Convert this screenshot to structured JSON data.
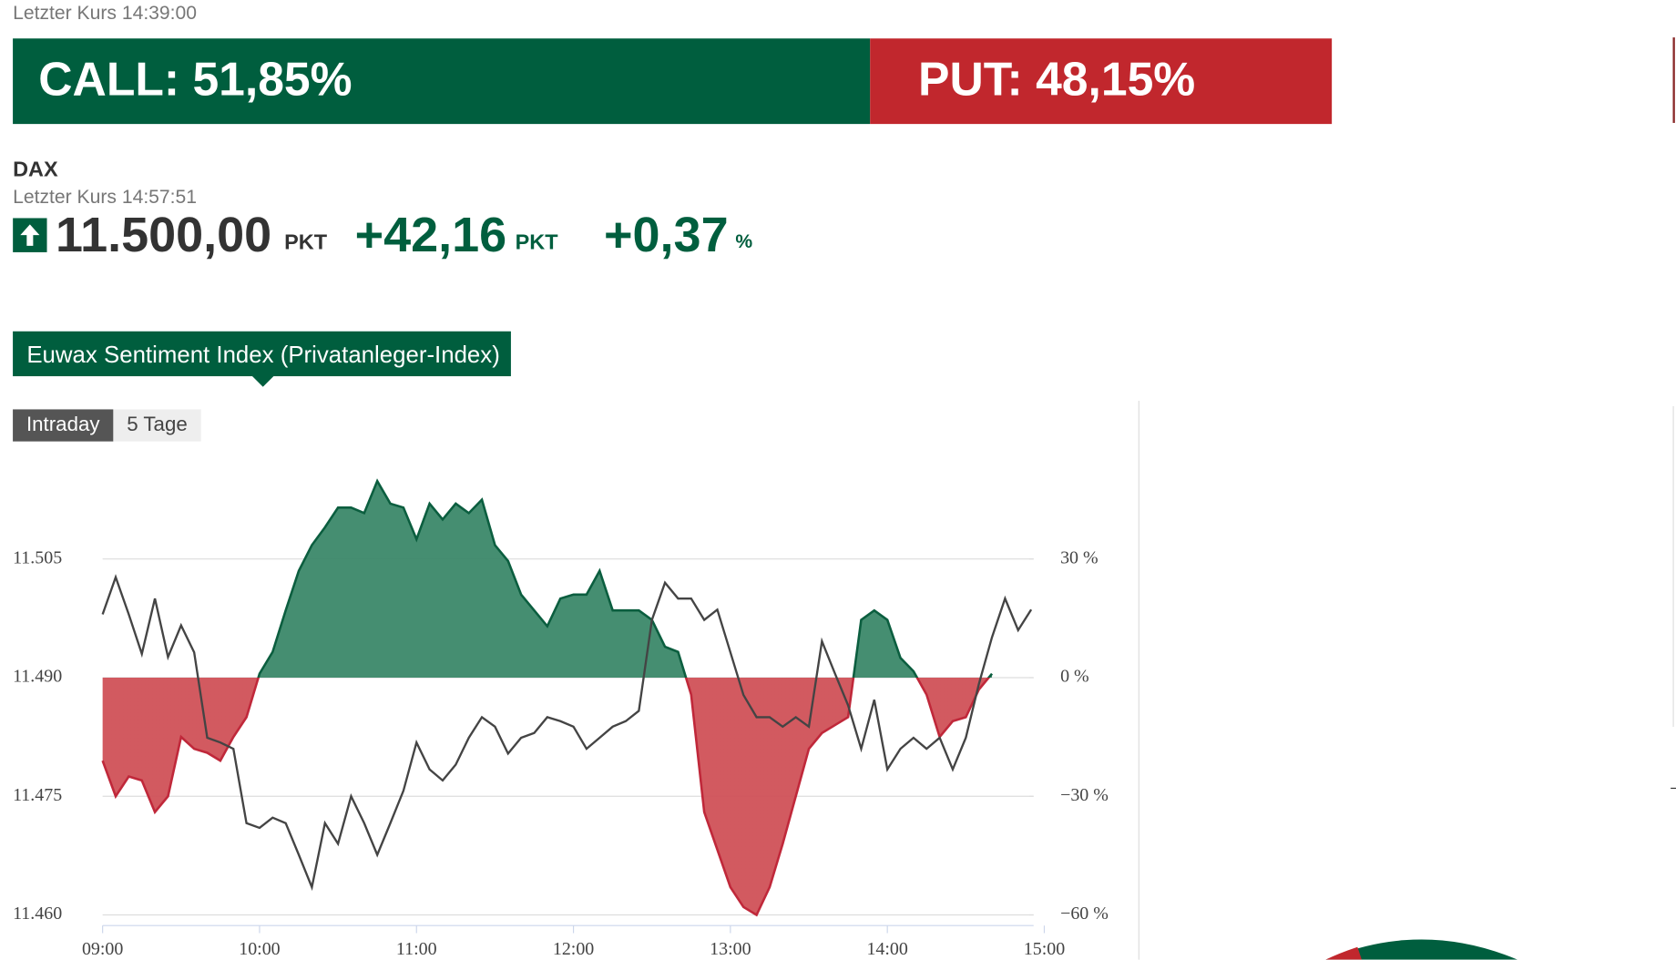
{
  "call_put": {
    "last_price": "Letzter Kurs 14:39:00",
    "call": "CALL: 51,85%",
    "put": "PUT: 48,15%"
  },
  "quote": {
    "name": "DAX",
    "last_price": "Letzter Kurs 14:57:51",
    "price": "11.500,00",
    "price_unit": "PKT",
    "change": "+42,16",
    "change_unit": "PKT",
    "change_pct": "+0,37",
    "change_pct_unit": "%"
  },
  "tab": "Euwax Sentiment Index (Privatanleger-Index)",
  "buttons": [
    "Intraday",
    "5 Tage"
  ],
  "chart_data": {
    "type": "line",
    "x": [
      "09:00",
      "09:05",
      "09:10",
      "09:15",
      "09:20",
      "09:25",
      "09:30",
      "09:35",
      "09:40",
      "09:45",
      "09:50",
      "09:55",
      "10:00",
      "10:05",
      "10:10",
      "10:15",
      "10:20",
      "10:25",
      "10:30",
      "10:35",
      "10:40",
      "10:45",
      "10:50",
      "10:55",
      "11:00",
      "11:05",
      "11:10",
      "11:15",
      "11:20",
      "11:25",
      "11:30",
      "11:35",
      "11:40",
      "11:45",
      "11:50",
      "11:55",
      "12:00",
      "12:05",
      "12:10",
      "12:15",
      "12:20",
      "12:25",
      "12:30",
      "12:35",
      "12:40",
      "12:45",
      "12:50",
      "12:55",
      "13:00",
      "13:05",
      "13:10",
      "13:15",
      "13:20",
      "13:25",
      "13:30",
      "13:35",
      "13:40",
      "13:45",
      "13:50",
      "13:55",
      "14:00",
      "14:05",
      "14:10",
      "14:15",
      "14:20",
      "14:25",
      "14:30",
      "14:35",
      "14:40",
      "14:45",
      "14:50",
      "14:55"
    ],
    "xlim": [
      "09:00",
      "15:00"
    ],
    "xticks": [
      "09:00",
      "10:00",
      "11:00",
      "12:00",
      "13:00",
      "14:00",
      "15:00"
    ],
    "ylim": [
      11460,
      11505
    ],
    "yticks": [
      {
        "value": 11505,
        "label": "11.505"
      },
      {
        "value": 11490,
        "label": "11.490"
      },
      {
        "value": 11475,
        "label": "11.475"
      },
      {
        "value": 11460,
        "label": "11.460"
      }
    ],
    "y2lim": [
      -60,
      30
    ],
    "y2ticks": [
      {
        "value": 30,
        "label": "30 %"
      },
      {
        "value": 0,
        "label": "0 %"
      },
      {
        "value": -30,
        "label": "−30 %"
      },
      {
        "value": -60,
        "label": "−60 %"
      }
    ],
    "grid": true,
    "series": [
      {
        "type": "area",
        "axis": "y2",
        "color": "#3f8a6c",
        "line_color": "#0b5e3f",
        "negative_color": "#d0545b",
        "negative_line_color": "#c0283a",
        "values": [
          -21,
          -30,
          -25,
          -26,
          -34,
          -30,
          -15,
          -18,
          -19,
          -21,
          -15,
          -10,
          1,
          6.5,
          17,
          27,
          33.5,
          38,
          43,
          43,
          41.6,
          49.7,
          44,
          43,
          35,
          44,
          40,
          44,
          41.6,
          45,
          33.5,
          29.5,
          21,
          17,
          13,
          20,
          21,
          21,
          27,
          17,
          17,
          17,
          14.6,
          7.8,
          6.5,
          -4.3,
          -34,
          -43.5,
          -53,
          -58,
          -60,
          -53,
          -42,
          -30,
          -18,
          -14,
          -12,
          -10,
          14.6,
          17,
          14.6,
          5,
          1.6,
          -4.3,
          -15,
          -11,
          -10,
          -3,
          1,
          null,
          null,
          null
        ]
      },
      {
        "type": "line",
        "color": "#444444",
        "values": [
          11498,
          11502.7,
          11498,
          11493,
          11500,
          11492.6,
          11496.6,
          11493.2,
          11482.4,
          11481.8,
          11481,
          11471.6,
          11471,
          11472.3,
          11471.6,
          11467.6,
          11463.5,
          11471.6,
          11469,
          11475,
          11471.6,
          11467.6,
          11471.6,
          11475.7,
          11481.8,
          11478.4,
          11477,
          11479,
          11482.4,
          11485,
          11483.8,
          11480.4,
          11482.4,
          11483,
          11485,
          11484.5,
          11483.8,
          11481,
          11482.4,
          11483.8,
          11484.5,
          11485.8,
          11497.3,
          11502,
          11500,
          11500,
          11497.3,
          11498.6,
          11493.2,
          11487.8,
          11485,
          11485,
          11483.8,
          11485,
          11483.8,
          11494.6,
          11490.5,
          11486.5,
          11481,
          11487.2,
          11478.4,
          11481,
          11482.4,
          11481,
          11482.4,
          11478.4,
          11482.4,
          11489.2,
          11495.1,
          11500,
          11496,
          11498.6
        ]
      }
    ]
  }
}
